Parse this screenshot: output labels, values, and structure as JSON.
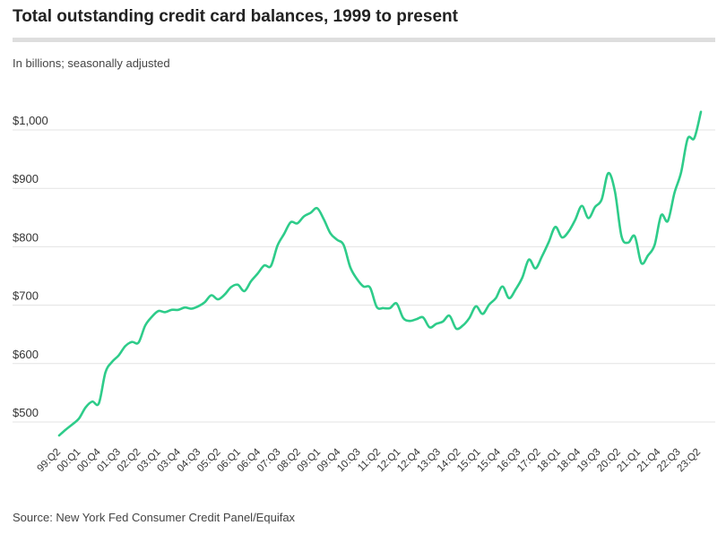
{
  "header": {
    "title": "Total outstanding credit card balances, 1999 to present",
    "subtitle": "In billions; seasonally adjusted"
  },
  "footer": {
    "source": "Source: New York Fed Consumer Credit Panel/Equifax"
  },
  "chart_data": {
    "type": "line",
    "title": "Total outstanding credit card balances, 1999 to present",
    "subtitle": "In billions; seasonally adjusted",
    "xlabel": "",
    "ylabel": "",
    "ylim": [
      470,
      1040
    ],
    "y_ticks": [
      500,
      600,
      700,
      800,
      900,
      1000
    ],
    "y_tick_labels": [
      "$500",
      "$600",
      "$700",
      "$800",
      "$900",
      "$1,000"
    ],
    "x_tick_labels": [
      "99:Q2",
      "00:Q1",
      "00:Q4",
      "01:Q3",
      "02:Q2",
      "03:Q1",
      "03:Q4",
      "04:Q3",
      "05:Q2",
      "06:Q1",
      "06:Q4",
      "07:Q3",
      "08:Q2",
      "09:Q1",
      "09:Q4",
      "10:Q3",
      "11:Q2",
      "12:Q1",
      "12:Q4",
      "13:Q3",
      "14:Q2",
      "15:Q1",
      "15:Q4",
      "16:Q3",
      "17:Q2",
      "18:Q1",
      "18:Q4",
      "19:Q3",
      "20:Q2",
      "21:Q1",
      "21:Q4",
      "22:Q3",
      "23:Q2"
    ],
    "grid": true,
    "line_color": "#2ecc8a",
    "series": [
      {
        "name": "",
        "values": [
          477,
          487,
          496,
          506,
          525,
          535,
          532,
          585,
          603,
          614,
          630,
          637,
          636,
          665,
          680,
          690,
          688,
          692,
          692,
          696,
          694,
          698,
          705,
          717,
          710,
          718,
          731,
          735,
          724,
          741,
          754,
          768,
          767,
          802,
          822,
          842,
          840,
          852,
          858,
          866,
          847,
          823,
          812,
          803,
          765,
          745,
          732,
          730,
          697,
          695,
          695,
          703,
          678,
          673,
          676,
          679,
          662,
          668,
          672,
          682,
          660,
          665,
          678,
          698,
          685,
          701,
          712,
          732,
          712,
          727,
          747,
          778,
          763,
          784,
          808,
          834,
          816,
          826,
          846,
          870,
          849,
          868,
          881,
          926,
          895,
          818,
          807,
          818,
          772,
          785,
          803,
          854,
          844,
          892,
          927,
          985,
          986,
          1031
        ]
      }
    ]
  }
}
